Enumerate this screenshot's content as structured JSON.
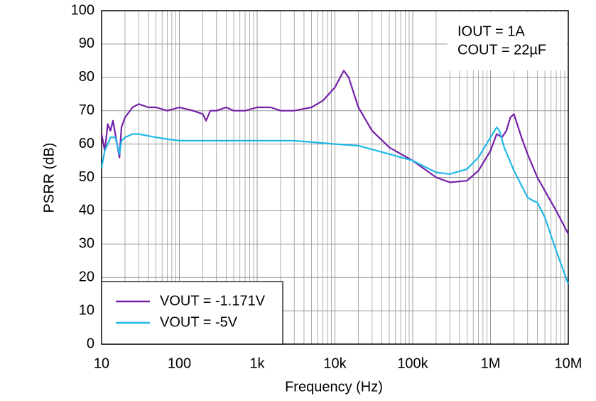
{
  "chart_data": {
    "type": "line",
    "x_label": "Frequency (Hz)",
    "y_label": "PSRR (dB)",
    "xlim": [
      10,
      10000000
    ],
    "ylim": [
      0,
      100
    ],
    "x_log": true,
    "grid": true,
    "minor_grid": true,
    "xticks": [
      10,
      100,
      {
        "value": 1000,
        "label": "1k"
      },
      {
        "value": 10000,
        "label": "10k"
      },
      {
        "value": 100000,
        "label": "100k"
      },
      {
        "value": 1000000,
        "label": "1M"
      },
      {
        "value": 10000000,
        "label": "10M"
      }
    ],
    "yticks": [
      0,
      10,
      20,
      30,
      40,
      50,
      60,
      70,
      80,
      90,
      100
    ],
    "legend": "lower left",
    "annotations": [
      "IOUT = 1A",
      "COUT = 22µF"
    ],
    "series": [
      {
        "name": "VOUT = -1.171V",
        "color": "#7421a8",
        "x": [
          10,
          11,
          12,
          13,
          14,
          15,
          17,
          18,
          20,
          25,
          30,
          40,
          50,
          70,
          100,
          150,
          200,
          220,
          250,
          300,
          400,
          500,
          700,
          1000,
          1500,
          2000,
          3000,
          5000,
          7000,
          10000,
          13000,
          15000,
          20000,
          30000,
          50000,
          100000,
          200000,
          300000,
          500000,
          700000,
          1000000,
          1200000,
          1400000,
          1600000,
          1800000,
          2000000,
          2500000,
          3000000,
          4000000,
          5000000,
          7000000,
          10000000
        ],
        "values": [
          63,
          58,
          66,
          64,
          67,
          63,
          56,
          65,
          68,
          71,
          72,
          71,
          71,
          70,
          71,
          70,
          69,
          67,
          70,
          70,
          71,
          70,
          70,
          71,
          71,
          70,
          70,
          71,
          73,
          77,
          82,
          80,
          71,
          64,
          59,
          55,
          50,
          48.5,
          49,
          52,
          58,
          63,
          62,
          64,
          68,
          69,
          62,
          57,
          50,
          46,
          40,
          33
        ]
      },
      {
        "name": "VOUT = -5V",
        "color": "#1fb8e8",
        "x": [
          10,
          11,
          12,
          13,
          15,
          17,
          18,
          20,
          25,
          30,
          50,
          70,
          100,
          300,
          1000,
          3000,
          10000,
          20000,
          50000,
          100000,
          200000,
          300000,
          500000,
          700000,
          1000000,
          1200000,
          1300000,
          1500000,
          2000000,
          3000000,
          3500000,
          4000000,
          5000000,
          7000000,
          10000000
        ],
        "values": [
          53,
          58,
          60,
          62,
          62,
          57,
          61,
          62,
          63,
          63,
          62,
          61.5,
          61,
          61,
          61,
          61,
          60,
          59.5,
          57,
          55,
          51.5,
          51,
          52.5,
          56,
          62,
          65,
          64,
          59,
          52,
          44,
          43,
          42.5,
          38,
          28,
          18
        ]
      }
    ]
  }
}
